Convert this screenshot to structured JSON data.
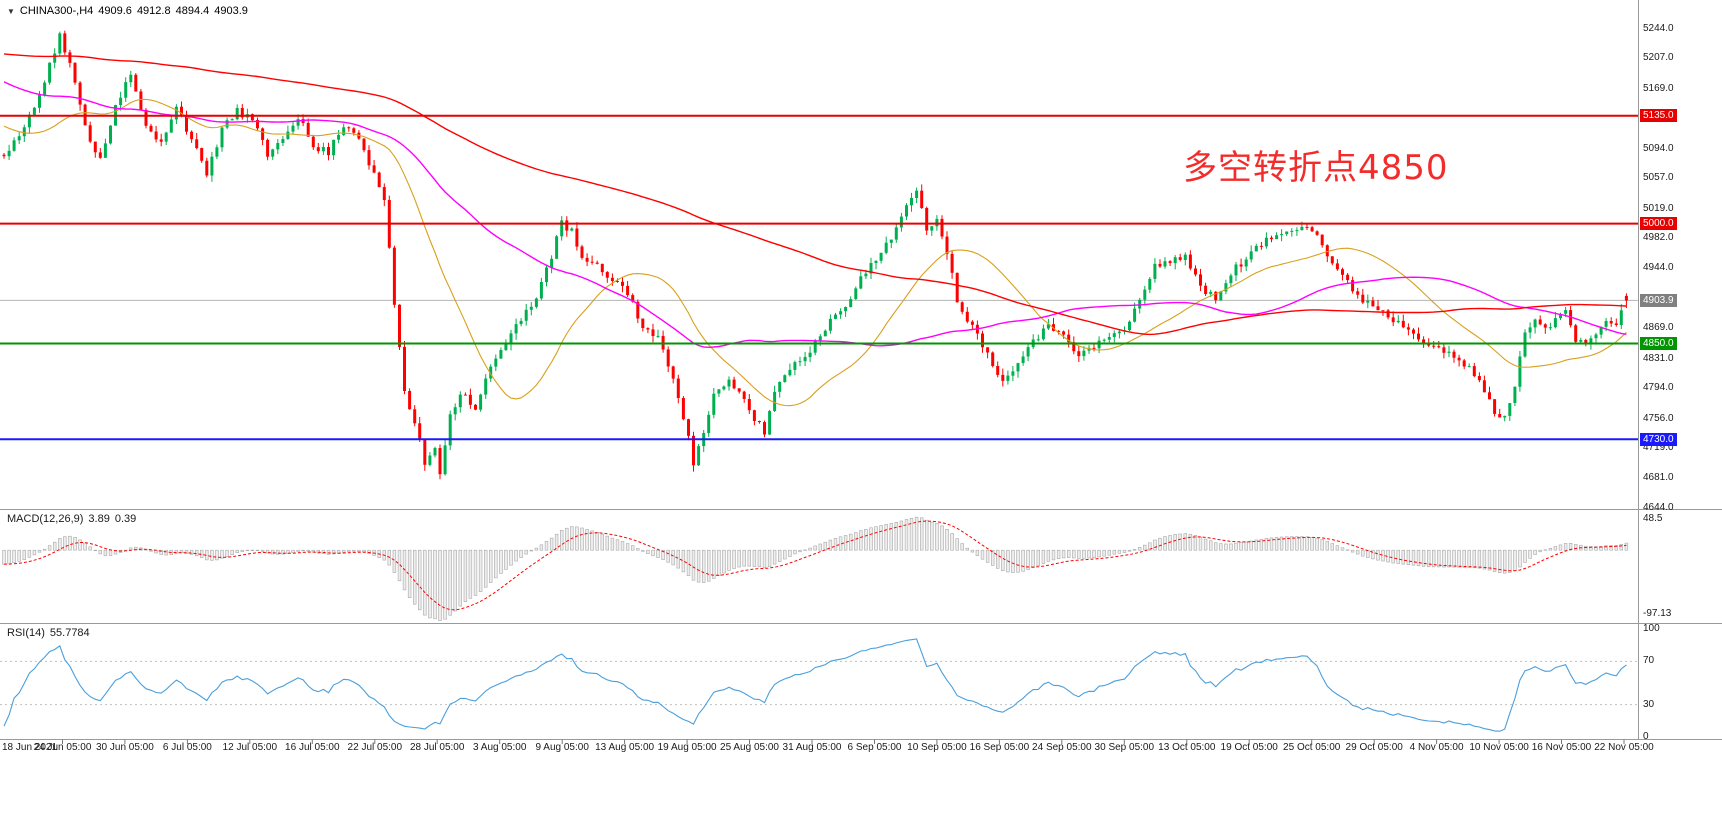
{
  "header": {
    "dropdown_icon": "▼",
    "symbol": "CHINA300-,H4",
    "open": "4909.6",
    "high": "4912.8",
    "low": "4894.4",
    "close": "4903.9"
  },
  "annotation": {
    "text": "多空转折点4850",
    "color": "#f32b2b"
  },
  "colors": {
    "up": "#00b050",
    "down": "#ff0000",
    "ma_fast": "#d8a01d",
    "ma_mid": "#ff00ff",
    "ma_slow": "#ff0000",
    "macd_hist_fill": "#ededed",
    "macd_hist_stroke": "#a8a8a8",
    "macd_signal": "#ff0000",
    "rsi_line": "#4a9fdc",
    "separator": "#9a9a9a",
    "current_line": "#b5b5b5"
  },
  "main_chart": {
    "y_labels": [
      {
        "value": 5244,
        "text": "5244.0"
      },
      {
        "value": 5207,
        "text": "5207.0"
      },
      {
        "value": 5169,
        "text": "5169.0"
      },
      {
        "value": 5094,
        "text": "5094.0"
      },
      {
        "value": 5057,
        "text": "5057.0"
      },
      {
        "value": 5019,
        "text": "5019.0"
      },
      {
        "value": 4982,
        "text": "4982.0"
      },
      {
        "value": 4944,
        "text": "4944.0"
      },
      {
        "value": 4869,
        "text": "4869.0"
      },
      {
        "value": 4831,
        "text": "4831.0"
      },
      {
        "value": 4794,
        "text": "4794.0"
      },
      {
        "value": 4756,
        "text": "4756.0"
      },
      {
        "value": 4719,
        "text": "4719.0"
      },
      {
        "value": 4681,
        "text": "4681.0"
      },
      {
        "value": 4644,
        "text": "4644.0"
      }
    ],
    "hlines": [
      {
        "value": 5135.0,
        "label": "5135.0",
        "color": "#e60000",
        "width": 2
      },
      {
        "value": 5000.0,
        "label": "5000.0",
        "color": "#e60000",
        "width": 2
      },
      {
        "value": 4850.0,
        "label": "4850.0",
        "color": "#009600",
        "width": 2
      },
      {
        "value": 4730.0,
        "label": "4730.0",
        "color": "#1a1aff",
        "width": 2
      }
    ],
    "current_price": {
      "value": 4903.9,
      "label": "4903.9",
      "badge_color": "#808080"
    }
  },
  "macd": {
    "name": "MACD(12,26,9)",
    "value_main": "3.89",
    "value_signal": "0.39",
    "fast": 12,
    "slow": 26,
    "signal": 9,
    "scale_top": "48.5",
    "scale_bottom": "-97.13"
  },
  "rsi": {
    "name": "RSI(14)",
    "value": "55.7784",
    "period": 14,
    "scale_labels": [
      100,
      70,
      30,
      0
    ],
    "level_lines": [
      70,
      30
    ]
  },
  "time_axis": {
    "labels": [
      "18 Jun 2021",
      "24 Jun 05:00",
      "30 Jun 05:00",
      "6 Jul 05:00",
      "12 Jul 05:00",
      "16 Jul 05:00",
      "22 Jul 05:00",
      "28 Jul 05:00",
      "3 Aug 05:00",
      "9 Aug 05:00",
      "13 Aug 05:00",
      "19 Aug 05:00",
      "25 Aug 05:00",
      "31 Aug 05:00",
      "6 Sep 05:00",
      "10 Sep 05:00",
      "16 Sep 05:00",
      "24 Sep 05:00",
      "30 Sep 05:00",
      "13 Oct 05:00",
      "19 Oct 05:00",
      "25 Oct 05:00",
      "29 Oct 05:00",
      "4 Nov 05:00",
      "10 Nov 05:00",
      "16 Nov 05:00",
      "22 Nov 05:00"
    ]
  },
  "chart_data": {
    "type": "candlestick",
    "symbol": "CHINA300",
    "timeframe": "H4",
    "title": "CHINA300-,H4",
    "bars": 321,
    "price_range": [
      4644,
      5280
    ],
    "key_levels": [
      5135.0,
      5000.0,
      4850.0,
      4730.0
    ],
    "current_price": 4903.9,
    "last_ohlc": {
      "open": 4909.6,
      "high": 4912.8,
      "low": 4894.4,
      "close": 4903.9
    },
    "seed": 11,
    "noise": 10,
    "wick": 8,
    "moving_averages": [
      {
        "period": 24,
        "color": "#d8a01d",
        "width": 1.1
      },
      {
        "period": 60,
        "color": "#ff00ff",
        "width": 1.4
      },
      {
        "period": 150,
        "color": "#ff0000",
        "width": 1.4
      }
    ],
    "indicators": [
      {
        "name": "MACD",
        "params": [
          12,
          26,
          9
        ],
        "values": [
          3.89,
          0.39
        ],
        "scale": [
          -97.13,
          48.5
        ]
      },
      {
        "name": "RSI",
        "params": [
          14
        ],
        "values": [
          55.7784
        ],
        "scale": [
          0,
          100
        ],
        "levels": [
          30,
          70
        ]
      }
    ],
    "close_keyframes": [
      [
        -170,
        5150
      ],
      [
        -120,
        5230
      ],
      [
        -60,
        5270
      ],
      [
        -20,
        5150
      ],
      [
        0,
        5085
      ],
      [
        4,
        5120
      ],
      [
        8,
        5180
      ],
      [
        11,
        5235
      ],
      [
        13,
        5200
      ],
      [
        16,
        5120
      ],
      [
        19,
        5080
      ],
      [
        22,
        5150
      ],
      [
        25,
        5185
      ],
      [
        28,
        5120
      ],
      [
        31,
        5100
      ],
      [
        34,
        5150
      ],
      [
        37,
        5105
      ],
      [
        40,
        5060
      ],
      [
        43,
        5120
      ],
      [
        46,
        5140
      ],
      [
        49,
        5130
      ],
      [
        52,
        5085
      ],
      [
        55,
        5110
      ],
      [
        58,
        5135
      ],
      [
        61,
        5095
      ],
      [
        64,
        5090
      ],
      [
        67,
        5125
      ],
      [
        70,
        5110
      ],
      [
        73,
        5060
      ],
      [
        75,
        5030
      ],
      [
        77,
        4900
      ],
      [
        79,
        4790
      ],
      [
        81,
        4750
      ],
      [
        83,
        4700
      ],
      [
        85,
        4720
      ],
      [
        86,
        4690
      ],
      [
        88,
        4760
      ],
      [
        90,
        4790
      ],
      [
        93,
        4770
      ],
      [
        96,
        4820
      ],
      [
        99,
        4850
      ],
      [
        102,
        4880
      ],
      [
        105,
        4910
      ],
      [
        108,
        4960
      ],
      [
        110,
        5000
      ],
      [
        112,
        4990
      ],
      [
        114,
        4955
      ],
      [
        117,
        4945
      ],
      [
        120,
        4930
      ],
      [
        123,
        4915
      ],
      [
        126,
        4870
      ],
      [
        129,
        4855
      ],
      [
        132,
        4810
      ],
      [
        134,
        4760
      ],
      [
        136,
        4700
      ],
      [
        138,
        4740
      ],
      [
        140,
        4785
      ],
      [
        143,
        4800
      ],
      [
        146,
        4780
      ],
      [
        148,
        4755
      ],
      [
        150,
        4740
      ],
      [
        152,
        4790
      ],
      [
        155,
        4820
      ],
      [
        158,
        4835
      ],
      [
        160,
        4850
      ],
      [
        163,
        4880
      ],
      [
        166,
        4900
      ],
      [
        169,
        4930
      ],
      [
        172,
        4955
      ],
      [
        175,
        4985
      ],
      [
        178,
        5020
      ],
      [
        180,
        5040
      ],
      [
        182,
        4990
      ],
      [
        184,
        5010
      ],
      [
        186,
        4965
      ],
      [
        188,
        4905
      ],
      [
        191,
        4870
      ],
      [
        194,
        4840
      ],
      [
        197,
        4800
      ],
      [
        200,
        4830
      ],
      [
        203,
        4855
      ],
      [
        206,
        4870
      ],
      [
        209,
        4865
      ],
      [
        212,
        4835
      ],
      [
        215,
        4845
      ],
      [
        218,
        4860
      ],
      [
        221,
        4865
      ],
      [
        224,
        4905
      ],
      [
        227,
        4945
      ],
      [
        230,
        4955
      ],
      [
        233,
        4960
      ],
      [
        236,
        4920
      ],
      [
        239,
        4905
      ],
      [
        242,
        4940
      ],
      [
        245,
        4955
      ],
      [
        248,
        4975
      ],
      [
        251,
        4985
      ],
      [
        254,
        4995
      ],
      [
        257,
        5000
      ],
      [
        259,
        4985
      ],
      [
        262,
        4950
      ],
      [
        265,
        4925
      ],
      [
        268,
        4905
      ],
      [
        271,
        4895
      ],
      [
        274,
        4880
      ],
      [
        277,
        4870
      ],
      [
        280,
        4855
      ],
      [
        283,
        4845
      ],
      [
        286,
        4830
      ],
      [
        289,
        4820
      ],
      [
        292,
        4790
      ],
      [
        294,
        4765
      ],
      [
        296,
        4755
      ],
      [
        298,
        4800
      ],
      [
        300,
        4860
      ],
      [
        302,
        4885
      ],
      [
        304,
        4870
      ],
      [
        306,
        4880
      ],
      [
        308,
        4890
      ],
      [
        310,
        4855
      ],
      [
        312,
        4845
      ],
      [
        314,
        4865
      ],
      [
        316,
        4880
      ],
      [
        318,
        4870
      ],
      [
        320,
        4904
      ]
    ]
  }
}
